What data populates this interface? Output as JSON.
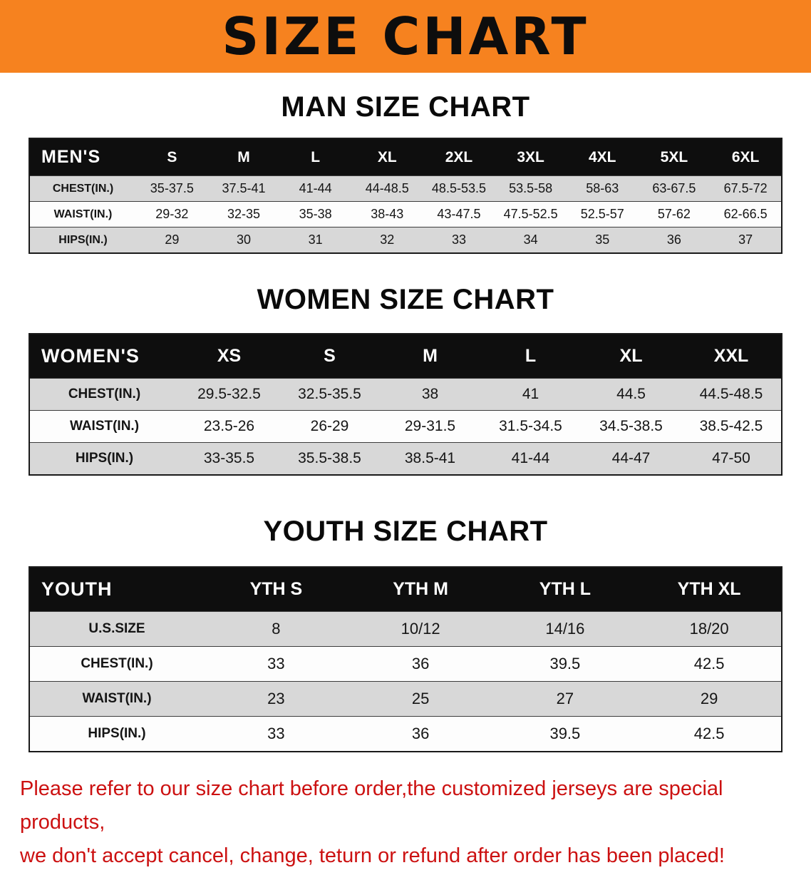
{
  "banner": {
    "title": "SIZE CHART",
    "background_color": "#f6821f",
    "title_color": "#0d0d0d"
  },
  "colors": {
    "table_header_bg": "#0e0e0e",
    "row_alt_bg": "#d8d8d8",
    "disclaimer_red": "#cc1111"
  },
  "sections": [
    {
      "heading": "MAN SIZE CHART",
      "table": {
        "label": "MEN'S",
        "columns": [
          "S",
          "M",
          "L",
          "XL",
          "2XL",
          "3XL",
          "4XL",
          "5XL",
          "6XL"
        ],
        "rows": [
          {
            "label": "CHEST(IN.)",
            "values": [
              "35-37.5",
              "37.5-41",
              "41-44",
              "44-48.5",
              "48.5-53.5",
              "53.5-58",
              "58-63",
              "63-67.5",
              "67.5-72"
            ]
          },
          {
            "label": "WAIST(IN.)",
            "values": [
              "29-32",
              "32-35",
              "35-38",
              "38-43",
              "43-47.5",
              "47.5-52.5",
              "52.5-57",
              "57-62",
              "62-66.5"
            ]
          },
          {
            "label": "HIPS(IN.)",
            "values": [
              "29",
              "30",
              "31",
              "32",
              "33",
              "34",
              "35",
              "36",
              "37"
            ]
          }
        ]
      }
    },
    {
      "heading": "WOMEN SIZE CHART",
      "table": {
        "label": "WOMEN'S",
        "columns": [
          "XS",
          "S",
          "M",
          "L",
          "XL",
          "XXL"
        ],
        "rows": [
          {
            "label": "CHEST(IN.)",
            "values": [
              "29.5-32.5",
              "32.5-35.5",
              "38",
              "41",
              "44.5",
              "44.5-48.5"
            ]
          },
          {
            "label": "WAIST(IN.)",
            "values": [
              "23.5-26",
              "26-29",
              "29-31.5",
              "31.5-34.5",
              "34.5-38.5",
              "38.5-42.5"
            ]
          },
          {
            "label": "HIPS(IN.)",
            "values": [
              "33-35.5",
              "35.5-38.5",
              "38.5-41",
              "41-44",
              "44-47",
              "47-50"
            ]
          }
        ]
      }
    },
    {
      "heading": "YOUTH SIZE CHART",
      "table": {
        "label": "YOUTH",
        "columns": [
          "YTH S",
          "YTH M",
          "YTH L",
          "YTH XL"
        ],
        "rows": [
          {
            "label": "U.S.SIZE",
            "values": [
              "8",
              "10/12",
              "14/16",
              "18/20"
            ]
          },
          {
            "label": "CHEST(IN.)",
            "values": [
              "33",
              "36",
              "39.5",
              "42.5"
            ]
          },
          {
            "label": "WAIST(IN.)",
            "values": [
              "23",
              "25",
              "27",
              "29"
            ]
          },
          {
            "label": "HIPS(IN.)",
            "values": [
              "33",
              "36",
              "39.5",
              "42.5"
            ]
          }
        ]
      }
    }
  ],
  "disclaimer": {
    "line1": "Please refer to our size chart before order,the customized jerseys are special products,",
    "line2": "we don't accept cancel, change, teturn or refund after order has been placed!"
  }
}
